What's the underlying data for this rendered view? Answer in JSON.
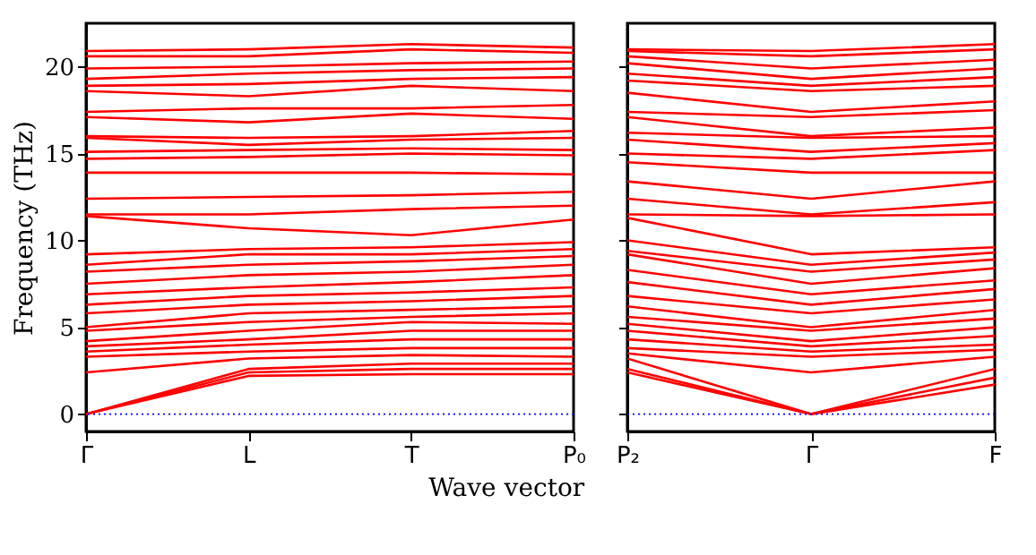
{
  "chart_data": [
    {
      "type": "line",
      "xlabel": "Wave vector",
      "ylabel": "Frequency (THz)",
      "categories": [
        "Γ",
        "L",
        "T",
        "P₀"
      ],
      "ylim": [
        -1,
        22.5
      ],
      "yticks": [
        0,
        5,
        10,
        15,
        20
      ],
      "grid": false,
      "legend": false,
      "marker": "none",
      "line_style": "solid",
      "ref_lines": [
        {
          "axis": "y",
          "value": 0,
          "color": "#0000ff",
          "line_style": "dotted"
        }
      ],
      "series": [
        {
          "color": "#ff0000",
          "values": [
            0,
            2.2,
            2.3,
            2.3
          ]
        },
        {
          "color": "#ff0000",
          "values": [
            0,
            2.4,
            2.6,
            2.6
          ]
        },
        {
          "color": "#ff0000",
          "values": [
            0,
            2.6,
            2.9,
            2.9
          ]
        },
        {
          "color": "#ff0000",
          "values": [
            2.4,
            3.2,
            3.4,
            3.3
          ]
        },
        {
          "color": "#ff0000",
          "values": [
            3.3,
            3.6,
            3.8,
            3.8
          ]
        },
        {
          "color": "#ff0000",
          "values": [
            3.6,
            4.0,
            4.3,
            4.3
          ]
        },
        {
          "color": "#ff0000",
          "values": [
            3.9,
            4.3,
            4.8,
            4.8
          ]
        },
        {
          "color": "#ff0000",
          "values": [
            4.2,
            4.8,
            5.3,
            5.2
          ]
        },
        {
          "color": "#ff0000",
          "values": [
            4.8,
            5.3,
            5.6,
            5.8
          ]
        },
        {
          "color": "#ff0000",
          "values": [
            5.0,
            5.8,
            6.0,
            6.2
          ]
        },
        {
          "color": "#ff0000",
          "values": [
            5.8,
            6.3,
            6.5,
            6.8
          ]
        },
        {
          "color": "#ff0000",
          "values": [
            6.3,
            6.8,
            7.0,
            7.3
          ]
        },
        {
          "color": "#ff0000",
          "values": [
            6.9,
            7.3,
            7.6,
            8.0
          ]
        },
        {
          "color": "#ff0000",
          "values": [
            7.5,
            8.0,
            8.2,
            8.6
          ]
        },
        {
          "color": "#ff0000",
          "values": [
            8.2,
            8.6,
            8.8,
            9.1
          ]
        },
        {
          "color": "#ff0000",
          "values": [
            8.6,
            9.2,
            9.2,
            9.5
          ]
        },
        {
          "color": "#ff0000",
          "values": [
            9.2,
            9.5,
            9.6,
            9.9
          ]
        },
        {
          "color": "#ff0000",
          "values": [
            11.4,
            10.7,
            10.3,
            11.2
          ]
        },
        {
          "color": "#ff0000",
          "values": [
            11.5,
            11.5,
            11.8,
            12.0
          ]
        },
        {
          "color": "#ff0000",
          "values": [
            12.4,
            12.5,
            12.6,
            12.8
          ]
        },
        {
          "color": "#ff0000",
          "values": [
            13.9,
            13.9,
            13.9,
            13.8
          ]
        },
        {
          "color": "#ff0000",
          "values": [
            14.7,
            14.8,
            15.0,
            14.9
          ]
        },
        {
          "color": "#ff0000",
          "values": [
            15.1,
            15.2,
            15.3,
            15.2
          ]
        },
        {
          "color": "#ff0000",
          "values": [
            15.9,
            15.5,
            15.8,
            15.9
          ]
        },
        {
          "color": "#ff0000",
          "values": [
            16.0,
            15.9,
            16.0,
            16.3
          ]
        },
        {
          "color": "#ff0000",
          "values": [
            17.1,
            16.8,
            17.3,
            17.0
          ]
        },
        {
          "color": "#ff0000",
          "values": [
            17.4,
            17.6,
            17.6,
            17.8
          ]
        },
        {
          "color": "#ff0000",
          "values": [
            18.6,
            18.3,
            18.9,
            18.6
          ]
        },
        {
          "color": "#ff0000",
          "values": [
            18.9,
            19.0,
            19.3,
            19.4
          ]
        },
        {
          "color": "#ff0000",
          "values": [
            19.3,
            19.6,
            19.8,
            19.9
          ]
        },
        {
          "color": "#ff0000",
          "values": [
            19.9,
            20.0,
            20.2,
            20.3
          ]
        },
        {
          "color": "#ff0000",
          "values": [
            20.6,
            20.6,
            21.0,
            20.8
          ]
        },
        {
          "color": "#ff0000",
          "values": [
            20.9,
            21.0,
            21.3,
            21.1
          ]
        }
      ]
    },
    {
      "type": "line",
      "categories": [
        "P₂",
        "Γ",
        "F"
      ],
      "ylim": [
        -1,
        22.5
      ],
      "yticks": [
        0,
        5,
        10,
        15,
        20
      ],
      "tick_labels": "x",
      "grid": false,
      "legend": false,
      "marker": "none",
      "line_style": "solid",
      "ref_lines": [
        {
          "axis": "y",
          "value": 0,
          "color": "#0000ff",
          "line_style": "dotted"
        }
      ],
      "series": [
        {
          "color": "#ff0000",
          "values": [
            2.4,
            0,
            1.7
          ]
        },
        {
          "color": "#ff0000",
          "values": [
            2.6,
            0,
            2.1
          ]
        },
        {
          "color": "#ff0000",
          "values": [
            3.2,
            0,
            2.6
          ]
        },
        {
          "color": "#ff0000",
          "values": [
            3.5,
            2.4,
            3.3
          ]
        },
        {
          "color": "#ff0000",
          "values": [
            3.8,
            3.3,
            3.7
          ]
        },
        {
          "color": "#ff0000",
          "values": [
            4.3,
            3.6,
            4.0
          ]
        },
        {
          "color": "#ff0000",
          "values": [
            4.8,
            3.9,
            4.5
          ]
        },
        {
          "color": "#ff0000",
          "values": [
            5.2,
            4.2,
            5.0
          ]
        },
        {
          "color": "#ff0000",
          "values": [
            5.6,
            4.8,
            5.5
          ]
        },
        {
          "color": "#ff0000",
          "values": [
            6.2,
            5.0,
            6.0
          ]
        },
        {
          "color": "#ff0000",
          "values": [
            6.8,
            5.8,
            6.6
          ]
        },
        {
          "color": "#ff0000",
          "values": [
            7.6,
            6.3,
            7.2
          ]
        },
        {
          "color": "#ff0000",
          "values": [
            8.3,
            6.9,
            7.7
          ]
        },
        {
          "color": "#ff0000",
          "values": [
            9.2,
            7.5,
            8.4
          ]
        },
        {
          "color": "#ff0000",
          "values": [
            9.4,
            8.2,
            8.9
          ]
        },
        {
          "color": "#ff0000",
          "values": [
            10.0,
            8.6,
            9.3
          ]
        },
        {
          "color": "#ff0000",
          "values": [
            11.3,
            9.2,
            9.6
          ]
        },
        {
          "color": "#ff0000",
          "values": [
            11.5,
            11.4,
            11.5
          ]
        },
        {
          "color": "#ff0000",
          "values": [
            12.4,
            11.5,
            12.2
          ]
        },
        {
          "color": "#ff0000",
          "values": [
            13.4,
            12.4,
            13.4
          ]
        },
        {
          "color": "#ff0000",
          "values": [
            14.5,
            13.9,
            13.9
          ]
        },
        {
          "color": "#ff0000",
          "values": [
            15.0,
            14.7,
            15.2
          ]
        },
        {
          "color": "#ff0000",
          "values": [
            15.8,
            15.1,
            15.6
          ]
        },
        {
          "color": "#ff0000",
          "values": [
            16.2,
            15.9,
            16.0
          ]
        },
        {
          "color": "#ff0000",
          "values": [
            17.1,
            16.0,
            16.5
          ]
        },
        {
          "color": "#ff0000",
          "values": [
            17.4,
            17.1,
            17.5
          ]
        },
        {
          "color": "#ff0000",
          "values": [
            18.5,
            17.4,
            18.0
          ]
        },
        {
          "color": "#ff0000",
          "values": [
            19.2,
            18.6,
            18.9
          ]
        },
        {
          "color": "#ff0000",
          "values": [
            19.6,
            18.9,
            19.4
          ]
        },
        {
          "color": "#ff0000",
          "values": [
            20.2,
            19.3,
            19.9
          ]
        },
        {
          "color": "#ff0000",
          "values": [
            20.6,
            19.9,
            20.4
          ]
        },
        {
          "color": "#ff0000",
          "values": [
            20.9,
            20.6,
            21.0
          ]
        },
        {
          "color": "#ff0000",
          "values": [
            21.0,
            20.9,
            21.3
          ]
        }
      ]
    }
  ]
}
